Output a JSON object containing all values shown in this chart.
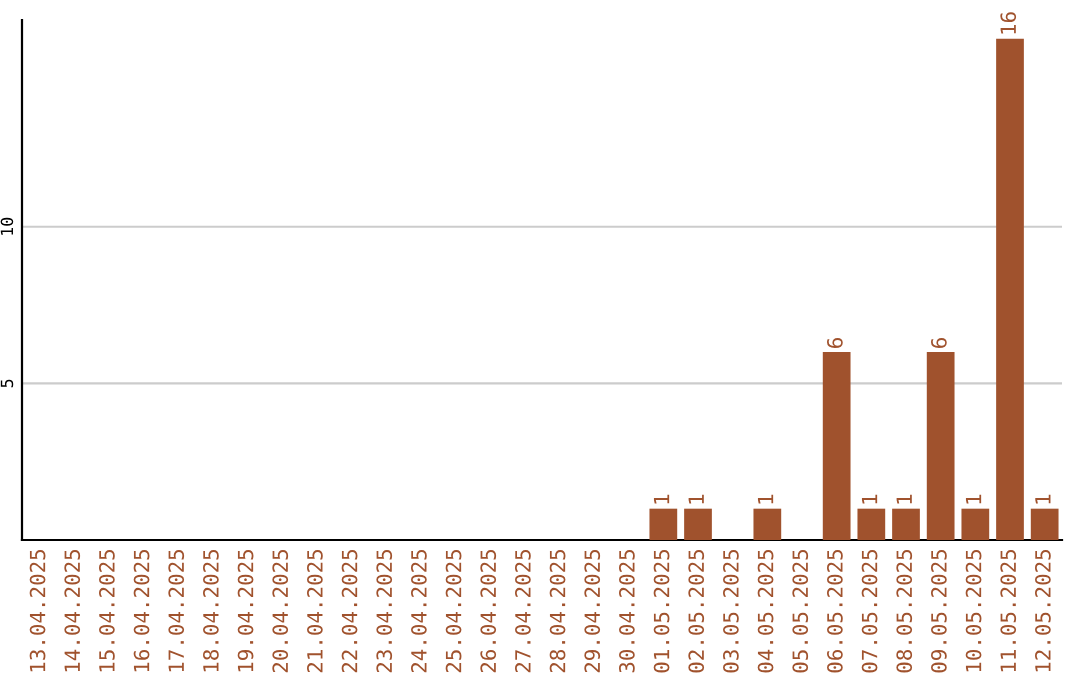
{
  "chart_data": {
    "type": "bar",
    "categories": [
      "13.04.2025",
      "14.04.2025",
      "15.04.2025",
      "16.04.2025",
      "17.04.2025",
      "18.04.2025",
      "19.04.2025",
      "20.04.2025",
      "21.04.2025",
      "22.04.2025",
      "23.04.2025",
      "24.04.2025",
      "25.04.2025",
      "26.04.2025",
      "27.04.2025",
      "28.04.2025",
      "29.04.2025",
      "30.04.2025",
      "01.05.2025",
      "02.05.2025",
      "03.05.2025",
      "04.05.2025",
      "05.05.2025",
      "06.05.2025",
      "07.05.2025",
      "08.05.2025",
      "09.05.2025",
      "10.05.2025",
      "11.05.2025",
      "12.05.2025"
    ],
    "values": [
      0,
      0,
      0,
      0,
      0,
      0,
      0,
      0,
      0,
      0,
      0,
      0,
      0,
      0,
      0,
      0,
      0,
      0,
      1,
      1,
      0,
      1,
      0,
      6,
      1,
      1,
      6,
      1,
      16,
      1
    ],
    "value_labels": [
      null,
      null,
      null,
      null,
      null,
      null,
      null,
      null,
      null,
      null,
      null,
      null,
      null,
      null,
      null,
      null,
      null,
      null,
      "1",
      "1",
      null,
      "1",
      null,
      "6",
      "1",
      "1",
      "6",
      "1",
      "16",
      "1"
    ],
    "color": "#a0522d",
    "ylim": [
      0,
      16.6
    ],
    "yticks": [
      5,
      10
    ],
    "grid": "y"
  }
}
